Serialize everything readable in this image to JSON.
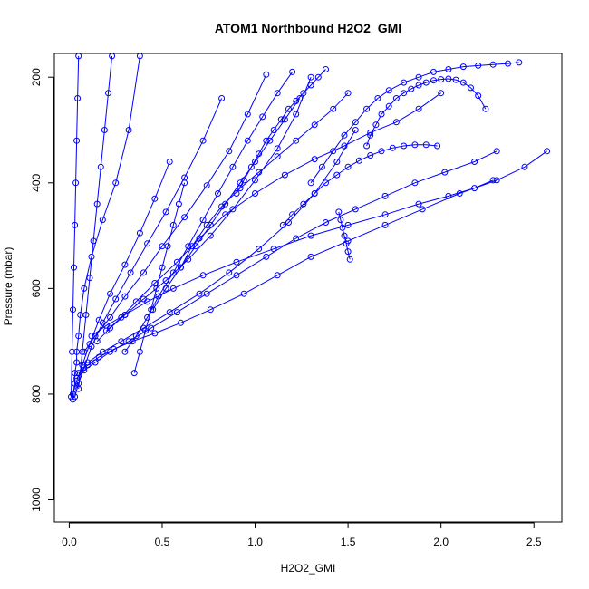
{
  "chart_data": {
    "type": "scatter",
    "title": "ATOM1 Northbound H2O2_GMI",
    "xlabel": "H2O2_GMI",
    "ylabel": "Pressure (mbar)",
    "xlim": [
      -0.08,
      2.65
    ],
    "ylim": [
      1042,
      155
    ],
    "y_reversed": true,
    "x_ticks": [
      "0.0",
      "0.5",
      "1.0",
      "1.5",
      "2.0",
      "2.5"
    ],
    "y_ticks": [
      "200",
      "400",
      "600",
      "800",
      "1000"
    ],
    "marker": "open-circle",
    "connect_points": true,
    "grid": false,
    "legend": "none",
    "colors": {
      "series": "#0000ff",
      "axis": "#000000",
      "background": "#ffffff"
    },
    "series": [
      {
        "x": [
          0.02,
          0.02,
          0.03,
          0.03,
          0.04,
          0.04,
          0.05,
          0.06,
          0.08,
          0.12,
          0.18,
          0.25,
          0.32,
          0.38
        ],
        "y": [
          810,
          800,
          780,
          760,
          740,
          720,
          690,
          650,
          600,
          540,
          470,
          400,
          300,
          160
        ]
      },
      {
        "x": [
          0.03,
          0.05,
          0.08,
          0.12,
          0.18,
          0.25,
          0.33,
          0.42,
          0.52,
          0.62,
          0.72,
          0.82
        ],
        "y": [
          805,
          780,
          750,
          710,
          665,
          620,
          570,
          515,
          455,
          390,
          320,
          240
        ]
      },
      {
        "x": [
          0.02,
          0.04,
          0.07,
          0.11,
          0.16,
          0.22,
          0.3,
          0.38,
          0.46,
          0.54
        ],
        "y": [
          800,
          775,
          745,
          705,
          660,
          610,
          555,
          495,
          430,
          360
        ]
      },
      {
        "x": [
          0.05,
          0.1,
          0.16,
          0.24,
          0.34,
          0.46,
          0.6,
          0.76,
          0.94,
          1.12,
          1.3,
          1.5,
          1.7,
          1.9,
          2.1,
          2.3,
          2.45,
          2.57
        ],
        "y": [
          760,
          745,
          730,
          715,
          700,
          685,
          665,
          640,
          610,
          575,
          540,
          510,
          480,
          450,
          420,
          395,
          370,
          340
        ]
      },
      {
        "x": [
          0.04,
          0.08,
          0.14,
          0.22,
          0.32,
          0.44,
          0.58,
          0.74,
          0.9,
          1.06,
          1.22,
          1.38,
          1.54,
          1.7,
          1.86,
          2.02,
          2.18,
          2.3
        ],
        "y": [
          770,
          755,
          740,
          720,
          700,
          675,
          645,
          610,
          575,
          540,
          505,
          475,
          450,
          425,
          400,
          380,
          360,
          340
        ]
      },
      {
        "x": [
          0.1,
          0.18,
          0.28,
          0.4,
          0.54,
          0.7,
          0.86,
          1.02,
          1.18,
          1.32,
          1.44,
          1.54
        ],
        "y": [
          740,
          720,
          700,
          675,
          645,
          610,
          570,
          525,
          475,
          420,
          360,
          300
        ]
      },
      {
        "x": [
          0.15,
          0.22,
          0.3,
          0.4,
          0.52,
          0.64,
          0.76,
          0.88,
          1.0,
          1.12,
          1.22,
          1.3
        ],
        "y": [
          700,
          675,
          650,
          620,
          585,
          545,
          500,
          450,
          395,
          335,
          270,
          200
        ]
      },
      {
        "x": [
          0.2,
          0.28,
          0.36,
          0.46,
          0.58,
          0.7,
          0.84,
          1.0,
          1.16,
          1.32,
          1.48,
          1.62,
          1.76,
          1.88,
          2.0
        ],
        "y": [
          680,
          655,
          625,
          590,
          550,
          505,
          460,
          420,
          385,
          355,
          330,
          305,
          285,
          260,
          230
        ]
      },
      {
        "x": [
          0.08,
          0.14,
          0.22,
          0.3,
          0.4,
          0.5,
          0.62,
          0.74,
          0.86,
          0.96,
          1.06
        ],
        "y": [
          720,
          690,
          655,
          615,
          570,
          520,
          465,
          405,
          340,
          270,
          195
        ]
      },
      {
        "x": [
          0.12,
          0.2,
          0.3,
          0.42,
          0.56,
          0.72,
          0.9,
          1.1,
          1.3,
          1.5,
          1.7,
          1.88,
          2.04,
          2.18,
          2.28
        ],
        "y": [
          690,
          670,
          650,
          625,
          600,
          575,
          550,
          525,
          500,
          480,
          460,
          440,
          425,
          410,
          395
        ]
      },
      {
        "x": [
          0.3,
          0.36,
          0.42,
          0.48,
          0.56,
          0.64,
          0.72,
          0.8,
          0.88,
          0.96,
          1.04,
          1.12,
          1.2
        ],
        "y": [
          720,
          690,
          655,
          615,
          570,
          520,
          470,
          420,
          370,
          320,
          275,
          230,
          190
        ]
      },
      {
        "x": [
          1.3,
          1.36,
          1.42,
          1.48,
          1.54,
          1.6,
          1.66,
          1.72,
          1.8,
          1.88,
          1.96,
          2.04,
          2.12,
          2.2,
          2.28,
          2.36,
          2.42
        ],
        "y": [
          400,
          370,
          340,
          310,
          285,
          260,
          240,
          225,
          210,
          200,
          190,
          185,
          180,
          178,
          176,
          174,
          172
        ]
      },
      {
        "x": [
          0.45,
          0.52,
          0.6,
          0.68,
          0.76,
          0.84,
          0.92,
          1.0,
          1.08,
          1.16,
          1.24
        ],
        "y": [
          640,
          600,
          560,
          520,
          480,
          440,
          400,
          360,
          320,
          280,
          240
        ]
      },
      {
        "x": [
          1.6,
          1.62,
          1.65,
          1.68,
          1.72,
          1.76,
          1.8,
          1.84,
          1.88,
          1.92,
          1.96,
          2.0,
          2.04,
          2.08,
          2.12,
          2.16,
          2.2,
          2.24
        ],
        "y": [
          330,
          310,
          290,
          270,
          255,
          240,
          230,
          222,
          215,
          210,
          206,
          204,
          203,
          205,
          210,
          220,
          235,
          260
        ]
      },
      {
        "x": [
          0.6,
          0.66,
          0.74,
          0.82,
          0.92,
          1.02,
          1.12,
          1.22,
          1.32,
          1.42,
          1.5
        ],
        "y": [
          560,
          520,
          480,
          445,
          410,
          380,
          350,
          320,
          290,
          260,
          230
        ]
      },
      {
        "x": [
          0.9,
          0.94,
          0.98,
          1.02,
          1.06,
          1.1,
          1.14,
          1.18,
          1.22,
          1.26,
          1.3,
          1.34,
          1.38
        ],
        "y": [
          420,
          395,
          370,
          345,
          320,
          300,
          280,
          260,
          245,
          230,
          215,
          200,
          185
        ]
      },
      {
        "x": [
          0.05,
          0.07,
          0.09,
          0.11,
          0.13,
          0.15,
          0.17,
          0.19,
          0.21,
          0.23
        ],
        "y": [
          790,
          720,
          650,
          580,
          510,
          440,
          370,
          300,
          230,
          160
        ]
      },
      {
        "x": [
          0.01,
          0.015,
          0.02,
          0.025,
          0.03,
          0.035,
          0.04,
          0.045,
          0.05
        ],
        "y": [
          805,
          720,
          640,
          560,
          480,
          400,
          320,
          240,
          160
        ]
      },
      {
        "x": [
          1.15,
          1.2,
          1.26,
          1.32,
          1.38,
          1.44,
          1.5,
          1.56,
          1.62,
          1.68,
          1.74,
          1.8,
          1.86,
          1.92,
          1.98
        ],
        "y": [
          480,
          460,
          440,
          420,
          400,
          385,
          370,
          358,
          348,
          340,
          334,
          330,
          328,
          328,
          330
        ]
      },
      {
        "x": [
          0.35,
          0.38,
          0.41,
          0.44,
          0.47,
          0.5,
          0.53,
          0.56,
          0.59,
          0.62
        ],
        "y": [
          760,
          720,
          680,
          640,
          600,
          560,
          520,
          480,
          440,
          400
        ]
      },
      {
        "x": [
          1.45,
          1.46,
          1.47,
          1.48,
          1.49,
          1.5,
          1.51
        ],
        "y": [
          455,
          470,
          485,
          500,
          515,
          530,
          545
        ]
      }
    ]
  }
}
